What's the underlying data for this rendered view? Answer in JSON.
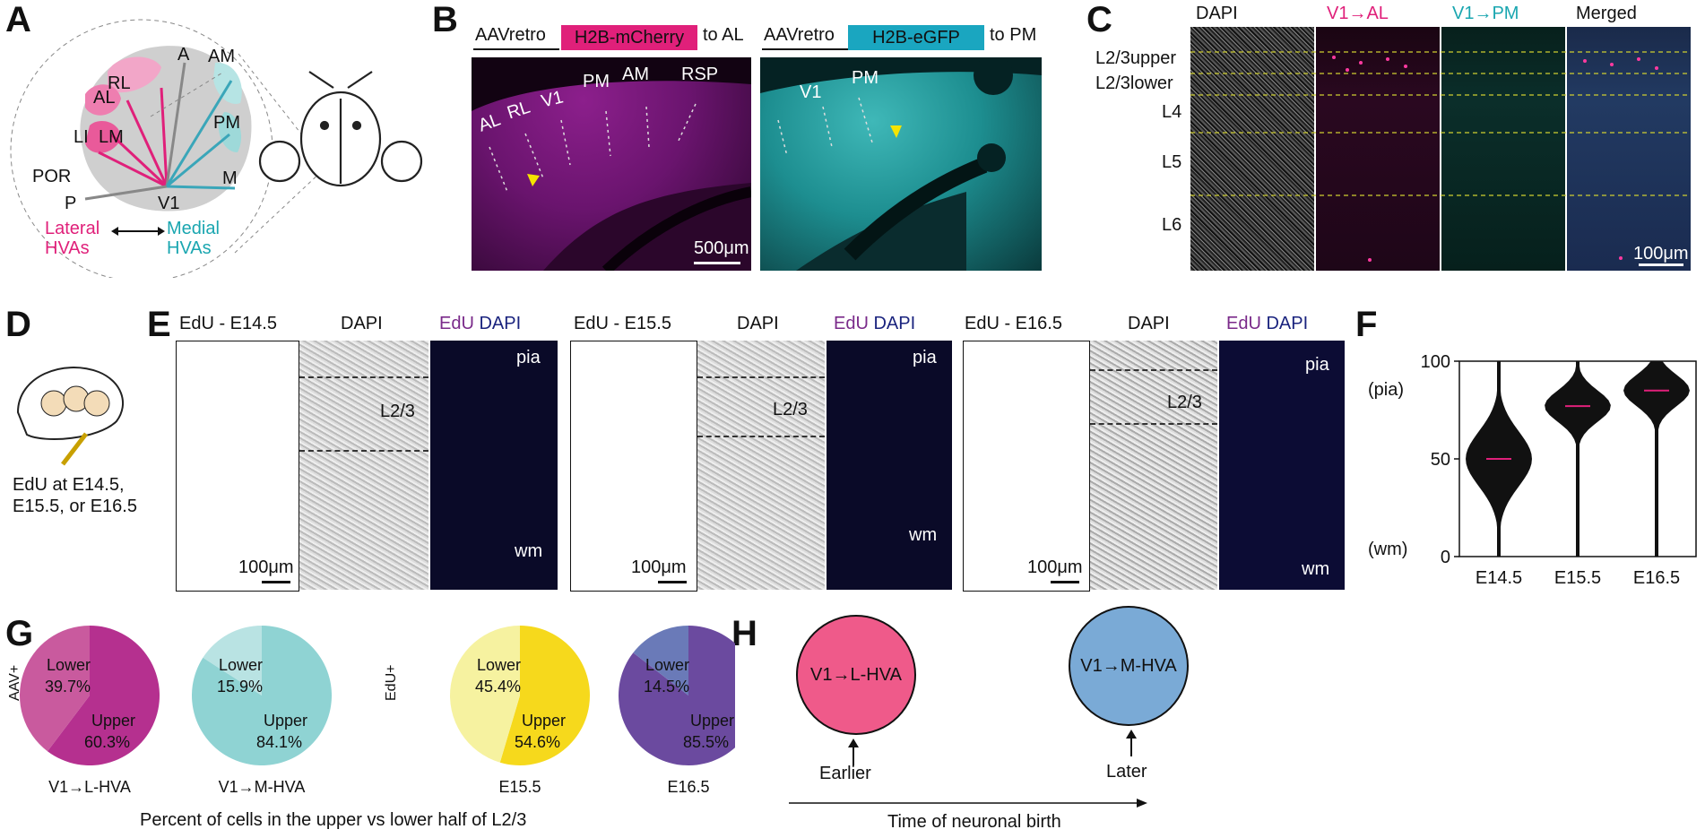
{
  "panels": {
    "A": "A",
    "B": "B",
    "C": "C",
    "D": "D",
    "E": "E",
    "F": "F",
    "G": "G",
    "H": "H"
  },
  "a": {
    "areas": [
      "RL",
      "A",
      "AM",
      "AL",
      "LI",
      "LM",
      "PM",
      "POR",
      "M",
      "P",
      "V1"
    ],
    "lateral": "Lateral HVAs",
    "medial": "Medial HVAs",
    "colors": {
      "lateral": "#e0207a",
      "medial": "#3aa6b9",
      "gray": "#cfcfcf"
    }
  },
  "b": {
    "left_virus": "AAVretro",
    "left_construct": "H2B-mCherry",
    "left_target": "to AL",
    "right_virus": "AAVretro",
    "right_construct": "H2B-eGFP",
    "right_target": "to PM",
    "left_areas": [
      "AL",
      "RL",
      "V1",
      "PM",
      "AM",
      "RSP"
    ],
    "right_areas": [
      "V1",
      "PM"
    ],
    "scalebar": "500μm"
  },
  "c": {
    "headers": [
      "DAPI",
      "V1→AL",
      "V1→PM",
      "Merged"
    ],
    "layers": [
      "L2/3upper",
      "L2/3lower",
      "L4",
      "L5",
      "L6"
    ],
    "scalebar": "100μm"
  },
  "d": {
    "caption": [
      "EdU at E14.5,",
      "E15.5, or E16.5"
    ]
  },
  "e": {
    "groups": [
      {
        "edu": "EdU - E14.5",
        "dapi": "DAPI",
        "merge_edu": "EdU",
        "merge_dapi": "DAPI",
        "scale": "100μm"
      },
      {
        "edu": "EdU - E15.5",
        "dapi": "DAPI",
        "merge_edu": "EdU",
        "merge_dapi": "DAPI",
        "scale": "100μm"
      },
      {
        "edu": "EdU - E16.5",
        "dapi": "DAPI",
        "merge_edu": "EdU",
        "merge_dapi": "DAPI",
        "scale": "100μm"
      }
    ],
    "layer_label": "L2/3",
    "pia": "pia",
    "wm": "wm"
  },
  "chart_data": [
    {
      "type": "violin",
      "panel": "F",
      "categories": [
        "E14.5",
        "E15.5",
        "E16.5"
      ],
      "medians": [
        50,
        77,
        85
      ],
      "ylim": [
        0,
        100
      ],
      "yticks": [
        0,
        50,
        100
      ],
      "ylabel_top": "(pia)",
      "ylabel_bottom": "(wm)"
    },
    {
      "type": "pie",
      "panel": "G",
      "ylabel_left": "AAV+",
      "ylabel_right": "EdU+",
      "caption": "Percent of cells in the upper vs lower half of L2/3",
      "pies": [
        {
          "name": "V1→L-HVA",
          "slices": [
            {
              "label": "Lower",
              "value": 39.7,
              "text": "39.7%",
              "color": "#c95a9e"
            },
            {
              "label": "Upper",
              "value": 60.3,
              "text": "60.3%",
              "color": "#b5308f"
            }
          ]
        },
        {
          "name": "V1→M-HVA",
          "slices": [
            {
              "label": "Lower",
              "value": 15.9,
              "text": "15.9%",
              "color": "#b9e3e3"
            },
            {
              "label": "Upper",
              "value": 84.1,
              "text": "84.1%",
              "color": "#8fd3d3"
            }
          ]
        },
        {
          "name": "E15.5",
          "slices": [
            {
              "label": "Lower",
              "value": 45.4,
              "text": "45.4%",
              "color": "#f6f2a0"
            },
            {
              "label": "Upper",
              "value": 54.6,
              "text": "54.6%",
              "color": "#f6d91c"
            }
          ]
        },
        {
          "name": "E16.5",
          "slices": [
            {
              "label": "Lower",
              "value": 14.5,
              "text": "14.5%",
              "color": "#6a7ab8"
            },
            {
              "label": "Upper",
              "value": 85.5,
              "text": "85.5%",
              "color": "#6b4a9f"
            }
          ]
        }
      ]
    }
  ],
  "h": {
    "early_circle": "V1→L-HVA",
    "late_circle": "V1→M-HVA",
    "early": "Earlier",
    "late": "Later",
    "axis": "Time of neuronal birth",
    "colors": {
      "early": "#ef5a8a",
      "late": "#7aaad6"
    }
  }
}
